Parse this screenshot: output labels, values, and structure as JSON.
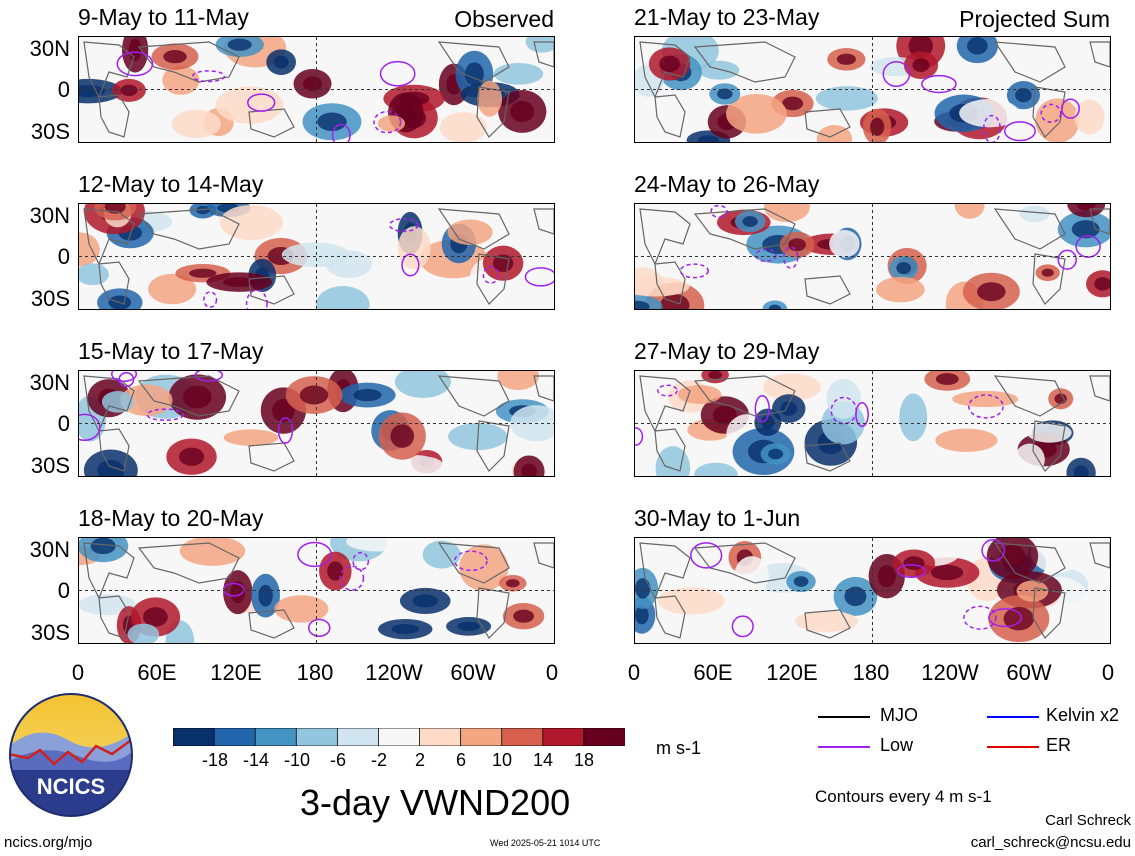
{
  "panels_left": [
    {
      "title": "9-May to 11-May",
      "tag": "Observed"
    },
    {
      "title": "12-May to 14-May",
      "tag": ""
    },
    {
      "title": "15-May to 17-May",
      "tag": ""
    },
    {
      "title": "18-May to 20-May",
      "tag": ""
    }
  ],
  "panels_right": [
    {
      "title": "21-May to 23-May",
      "tag": "Projected Sum"
    },
    {
      "title": "24-May to 26-May",
      "tag": ""
    },
    {
      "title": "27-May to 29-May",
      "tag": ""
    },
    {
      "title": "30-May to 1-Jun",
      "tag": ""
    }
  ],
  "lat_labels": [
    "30N",
    "0",
    "30S"
  ],
  "lon_labels": [
    "0",
    "60E",
    "120E",
    "180",
    "120W",
    "60W",
    "0"
  ],
  "colorbar": {
    "ticks": [
      "-18",
      "-14",
      "-10",
      "-6",
      "-2",
      "2",
      "6",
      "10",
      "14",
      "18"
    ],
    "units": "m s-1",
    "colors": [
      "#08306b",
      "#2166ac",
      "#4393c3",
      "#92c5de",
      "#d1e5f0",
      "#f7f7f7",
      "#fddbc7",
      "#f4a582",
      "#d6604d",
      "#b2182b",
      "#67001f"
    ]
  },
  "legend": [
    {
      "label": "MJO",
      "color": "#000000"
    },
    {
      "label": "Kelvin x2",
      "color": "#0000ff"
    },
    {
      "label": "Low",
      "color": "#a020f0"
    },
    {
      "label": "ER",
      "color": "#dd0000"
    }
  ],
  "title": "3-day VWND200",
  "contours_note": "Contours every 4 m s-1",
  "logo_text": "NCICS",
  "footer_left": "ncics.org/mjo",
  "footer_center": "Wed 2025-05-21 1014 UTC",
  "author": "Carl Schreck",
  "email": "carl_schreck@ncsu.edu"
}
